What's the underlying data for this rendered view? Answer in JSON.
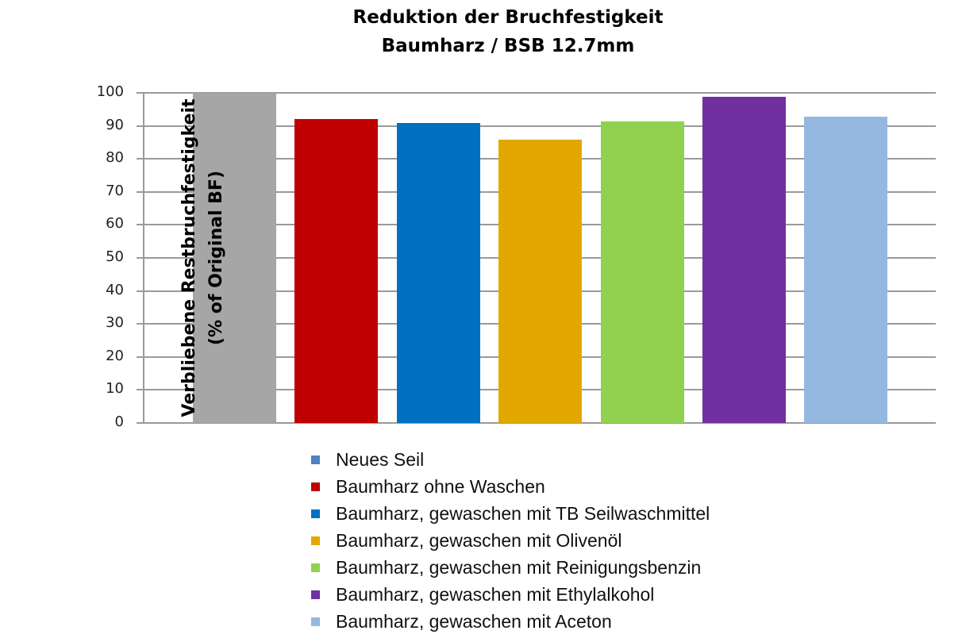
{
  "chart_data": {
    "type": "bar",
    "title": "Reduktion der Bruchfestigkeit",
    "subtitle": "Baumharz / BSB 12.7mm",
    "xlabel": "",
    "ylabel": "Verbliebene Restbruchfestigkeit",
    "ylabel_line2": "(% of Original BF)",
    "ylim": [
      0,
      100
    ],
    "yticks": [
      0,
      10,
      20,
      30,
      40,
      50,
      60,
      70,
      80,
      90,
      100
    ],
    "grid": true,
    "legend_position": "bottom",
    "categories": [
      "Neues Seil",
      "Baumharz ohne Waschen",
      "Baumharz, gewaschen mit TB Seilwaschmittel",
      "Baumharz, gewaschen mit Olivenöl",
      "Baumharz, gewaschen mit Reinigungsbenzin",
      "Baumharz, gewaschen mit Ethylalkohol",
      "Baumharz, gewaschen mit Aceton"
    ],
    "values": [
      100,
      92.1,
      90.9,
      85.9,
      91.4,
      98.9,
      92.7
    ],
    "bar_colors": [
      "#A6A6A6",
      "#C00000",
      "#0070C0",
      "#E3A800",
      "#92D050",
      "#7030A0",
      "#95B8E0"
    ],
    "legend_colors": [
      "#4F81BD",
      "#C00000",
      "#0070C0",
      "#E3A800",
      "#92D050",
      "#7030A0",
      "#95B8E0"
    ]
  }
}
